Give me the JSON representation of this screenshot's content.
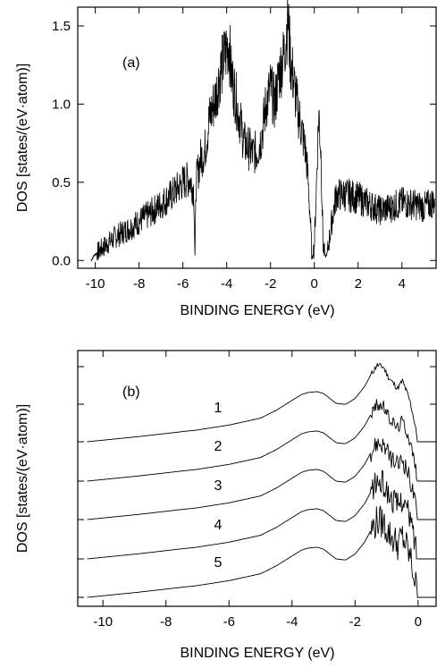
{
  "chart_data": [
    {
      "type": "line",
      "panel_label": "(a)",
      "xlabel": "BINDING ENERGY (eV)",
      "ylabel": "DOS [states/(eV·atom)]",
      "xlim": [
        -10.8,
        5.6
      ],
      "ylim": [
        -0.05,
        1.62
      ],
      "x_ticks": [
        -10,
        -8,
        -6,
        -4,
        -2,
        0,
        2,
        4
      ],
      "y_ticks": [
        0.0,
        0.5,
        1.0,
        1.5
      ],
      "y_tick_labels": [
        "0.0",
        "0.5",
        "1.0",
        "1.5"
      ],
      "grid": false,
      "series": [
        {
          "x": [
            -10.2,
            -10.0,
            -9.5,
            -9.0,
            -8.5,
            -8.0,
            -7.5,
            -7.0,
            -6.5,
            -6.0,
            -5.7,
            -5.5,
            -5.45,
            -5.4,
            -5.2,
            -5.0,
            -4.8,
            -4.5,
            -4.3,
            -4.1,
            -3.9,
            -3.8,
            -3.6,
            -3.4,
            -3.2,
            -3.0,
            -2.8,
            -2.6,
            -2.4,
            -2.2,
            -2.0,
            -1.8,
            -1.6,
            -1.4,
            -1.2,
            -1.1,
            -1.0,
            -0.8,
            -0.6,
            -0.4,
            -0.3,
            -0.2,
            -0.1,
            0.0,
            0.1,
            0.2,
            0.3,
            0.4,
            0.5,
            0.6,
            0.8,
            1.0,
            1.5,
            2.0,
            2.5,
            3.0,
            3.5,
            4.0,
            4.5,
            5.0,
            5.5
          ],
          "y": [
            0.0,
            0.04,
            0.1,
            0.16,
            0.2,
            0.25,
            0.3,
            0.36,
            0.42,
            0.5,
            0.52,
            0.45,
            0.0,
            0.5,
            0.65,
            0.7,
            0.9,
            1.05,
            1.2,
            1.3,
            1.4,
            1.2,
            1.05,
            0.9,
            0.75,
            0.72,
            0.68,
            0.7,
            0.8,
            1.0,
            1.1,
            1.0,
            1.2,
            1.3,
            1.55,
            1.3,
            1.2,
            1.0,
            0.85,
            0.7,
            0.55,
            0.3,
            0.0,
            0.1,
            0.5,
            0.95,
            0.7,
            0.1,
            0.02,
            0.05,
            0.25,
            0.42,
            0.42,
            0.4,
            0.36,
            0.32,
            0.34,
            0.37,
            0.36,
            0.34,
            0.38
          ]
        }
      ]
    },
    {
      "type": "line",
      "panel_label": "(b)",
      "xlabel": "BINDING ENERGY (eV)",
      "ylabel": "DOS [states/(eV·atom)]",
      "xlim": [
        -10.8,
        0.6
      ],
      "x_ticks": [
        -10,
        -8,
        -6,
        -4,
        -2,
        0
      ],
      "y_tick_labels_shown": false,
      "grid": false,
      "series": [
        {
          "name": "1"
        },
        {
          "name": "2"
        },
        {
          "name": "3"
        },
        {
          "name": "4"
        },
        {
          "name": "5"
        }
      ],
      "curve_shape": {
        "x": [
          -10.5,
          -10.0,
          -9.0,
          -8.0,
          -7.0,
          -6.0,
          -5.0,
          -4.5,
          -4.0,
          -3.7,
          -3.5,
          -3.2,
          -3.0,
          -2.8,
          -2.6,
          -2.3,
          -2.0,
          -1.7,
          -1.5,
          -1.3,
          -1.1,
          -0.95,
          -0.8,
          -0.65,
          -0.5,
          -0.35,
          -0.25,
          -0.15,
          -0.05
        ],
        "y": [
          0.0,
          0.08,
          0.24,
          0.42,
          0.6,
          0.85,
          1.2,
          1.6,
          2.1,
          2.4,
          2.5,
          2.55,
          2.45,
          2.2,
          1.95,
          1.9,
          2.2,
          2.8,
          3.4,
          3.9,
          3.8,
          3.3,
          3.0,
          2.7,
          3.1,
          2.5,
          2.0,
          1.3,
          0.4
        ]
      }
    }
  ]
}
